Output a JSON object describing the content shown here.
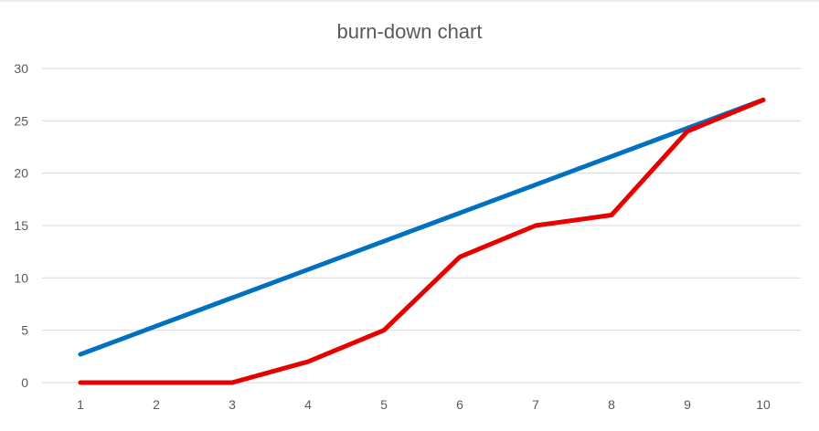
{
  "chart_data": {
    "type": "line",
    "title": "burn-down chart",
    "xlabel": "",
    "ylabel": "",
    "x": [
      1,
      2,
      3,
      4,
      5,
      6,
      7,
      8,
      9,
      10
    ],
    "x_tick_labels": [
      "1",
      "2",
      "3",
      "4",
      "5",
      "6",
      "7",
      "8",
      "9",
      "10"
    ],
    "ylim": [
      0,
      30
    ],
    "y_tick_labels": [
      "0",
      "5",
      "10",
      "15",
      "20",
      "25",
      "30"
    ],
    "y_ticks": [
      0,
      5,
      10,
      15,
      20,
      25,
      30
    ],
    "grid": true,
    "legend": "none",
    "series": [
      {
        "values": [
          2.7,
          5.4,
          8.1,
          10.8,
          13.5,
          16.2,
          18.9,
          21.6,
          24.3,
          27
        ],
        "color": "#0070c0"
      },
      {
        "values": [
          0,
          0,
          0,
          2,
          5,
          12,
          15,
          16,
          24,
          27
        ],
        "color": "#e60000"
      }
    ]
  }
}
